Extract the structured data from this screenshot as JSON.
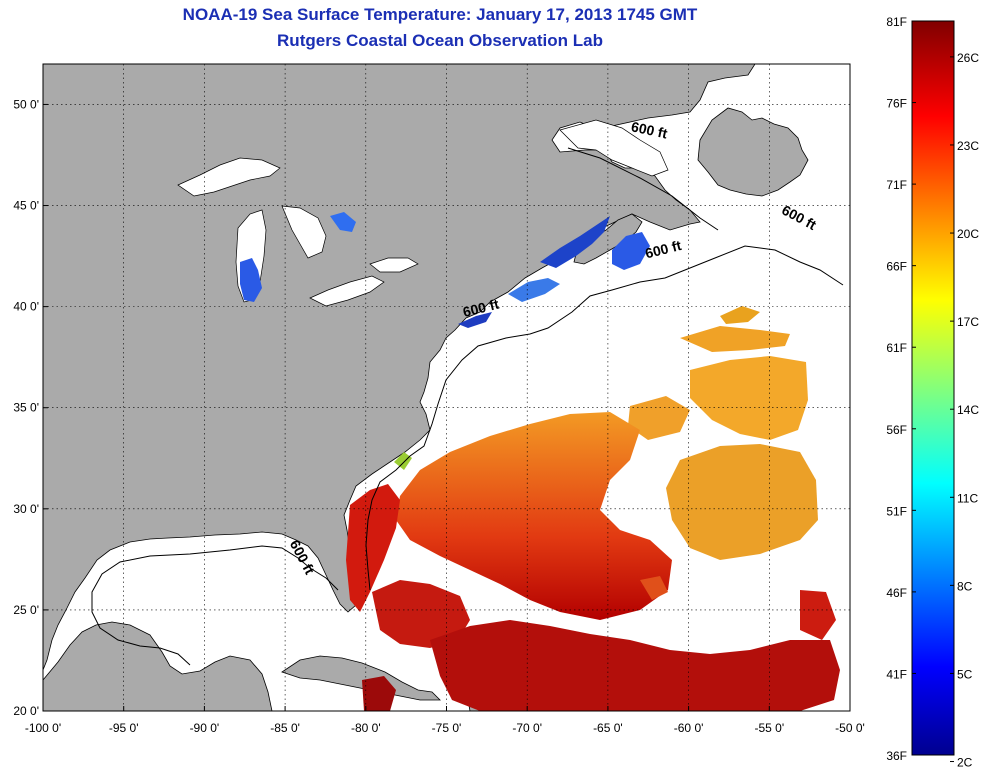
{
  "header": {
    "title": "NOAA-19 Sea Surface Temperature:  January 17, 2013 1745 GMT",
    "subtitle": "Rutgers Coastal Ocean Observation Lab"
  },
  "map": {
    "lon_range": [
      -100,
      -50
    ],
    "lat_range": [
      20,
      52
    ],
    "grid": true,
    "x_ticks": [
      {
        "value": -100,
        "label": "-100 0'"
      },
      {
        "value": -95,
        "label": "-95 0'"
      },
      {
        "value": -90,
        "label": "-90 0'"
      },
      {
        "value": -85,
        "label": "-85 0'"
      },
      {
        "value": -80,
        "label": "-80 0'"
      },
      {
        "value": -75,
        "label": "-75 0'"
      },
      {
        "value": -70,
        "label": "-70 0'"
      },
      {
        "value": -65,
        "label": "-65 0'"
      },
      {
        "value": -60,
        "label": "-60 0'"
      },
      {
        "value": -55,
        "label": "-55 0'"
      },
      {
        "value": -50,
        "label": "-50 0'"
      }
    ],
    "y_ticks": [
      {
        "value": 20,
        "label": "20 0'"
      },
      {
        "value": 25,
        "label": "25 0'"
      },
      {
        "value": 30,
        "label": "30 0'"
      },
      {
        "value": 35,
        "label": "35 0'"
      },
      {
        "value": 40,
        "label": "40 0'"
      },
      {
        "value": 45,
        "label": "45 0'"
      },
      {
        "value": 50,
        "label": "50 0'"
      }
    ],
    "isobath_labels": [
      {
        "text": "600 ft",
        "lon": -62.5,
        "lat": 48.5,
        "angle": 12
      },
      {
        "text": "600 ft",
        "lon": -53.3,
        "lat": 44.2,
        "angle": 28
      },
      {
        "text": "600 ft",
        "lon": -61.5,
        "lat": 42.6,
        "angle": -14
      },
      {
        "text": "600 ft",
        "lon": -72.8,
        "lat": 39.7,
        "angle": -14
      },
      {
        "text": "600 ft",
        "lon": -84.2,
        "lat": 27.5,
        "angle": 62
      }
    ],
    "colors": {
      "land": "#aaaaaa",
      "water": "#ffffff",
      "coast": "#000000"
    }
  },
  "colorbar": {
    "min_f": 36,
    "max_f": 81,
    "left_labels": [
      "81F",
      "76F",
      "71F",
      "66F",
      "61F",
      "56F",
      "51F",
      "46F",
      "41F",
      "36F"
    ],
    "right_labels": [
      "26C",
      "23C",
      "20C",
      "17C",
      "14C",
      "11C",
      "8C",
      "5C",
      "2C"
    ],
    "right_values_c": [
      26,
      23,
      20,
      17,
      14,
      11,
      8,
      5,
      2
    ]
  }
}
